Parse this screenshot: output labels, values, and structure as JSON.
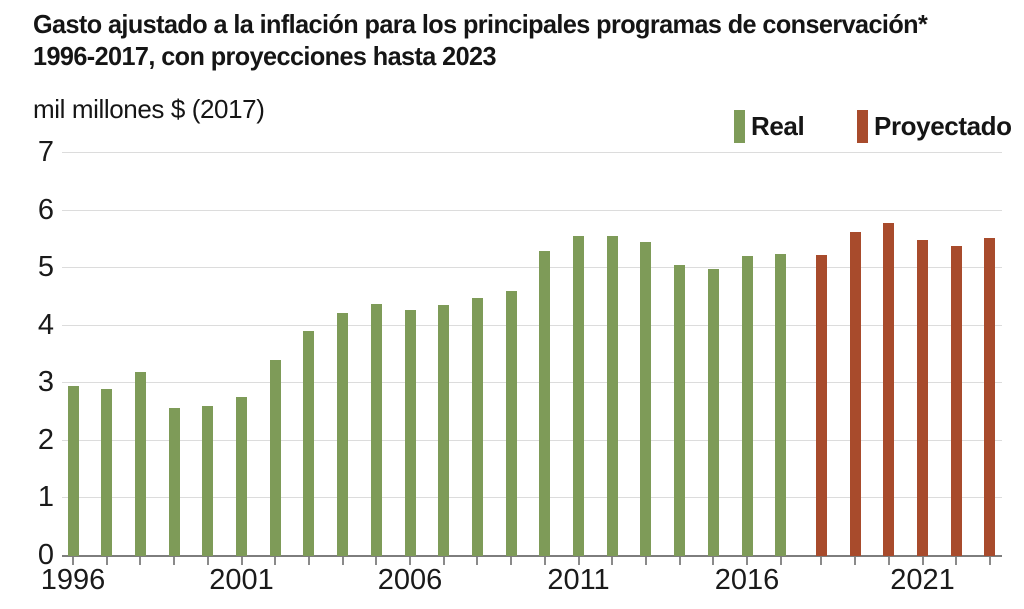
{
  "title": {
    "line1": "Gasto ajustado a la inflación para los principales programas de conservación*",
    "line2": "1996-2017, con proyecciones hasta 2023"
  },
  "unit_label": "mil millones $ (2017)",
  "legend": {
    "real_label": "Real",
    "proyectado_label": "Proyectado"
  },
  "colors": {
    "real": "#7E9B58",
    "proyectado": "#A84B2C",
    "gridline": "#DCDCDC",
    "axis": "#7D7D7D",
    "text": "#151515"
  },
  "chart_data": {
    "type": "bar",
    "title": "Gasto ajustado a la inflación para los principales programas de conservación* 1996-2017, con proyecciones hasta 2023",
    "xlabel": "",
    "ylabel": "mil millones $ (2017)",
    "ylim": [
      0,
      7
    ],
    "y_ticks": [
      0,
      1,
      2,
      3,
      4,
      5,
      6,
      7
    ],
    "x_tick_labels": [
      "1996",
      "2001",
      "2006",
      "2011",
      "2016",
      "2021"
    ],
    "grid": true,
    "legend_position": "top-right",
    "series": [
      {
        "name": "Real",
        "color": "#7E9B58",
        "years": [
          1996,
          1997,
          1998,
          1999,
          2000,
          2001,
          2002,
          2003,
          2004,
          2005,
          2006,
          2007,
          2008,
          2009,
          2010,
          2011,
          2012,
          2013,
          2014,
          2015,
          2016,
          2017
        ],
        "values": [
          2.95,
          2.9,
          3.2,
          2.57,
          2.6,
          2.77,
          3.4,
          3.9,
          4.22,
          4.38,
          4.28,
          4.36,
          4.48,
          4.6,
          5.3,
          5.56,
          5.56,
          5.45,
          5.06,
          4.98,
          5.21,
          5.24
        ]
      },
      {
        "name": "Proyectado",
        "color": "#A84B2C",
        "years": [
          2018,
          2019,
          2020,
          2021,
          2022,
          2023
        ],
        "values": [
          5.22,
          5.62,
          5.78,
          5.49,
          5.38,
          5.52
        ]
      }
    ]
  }
}
